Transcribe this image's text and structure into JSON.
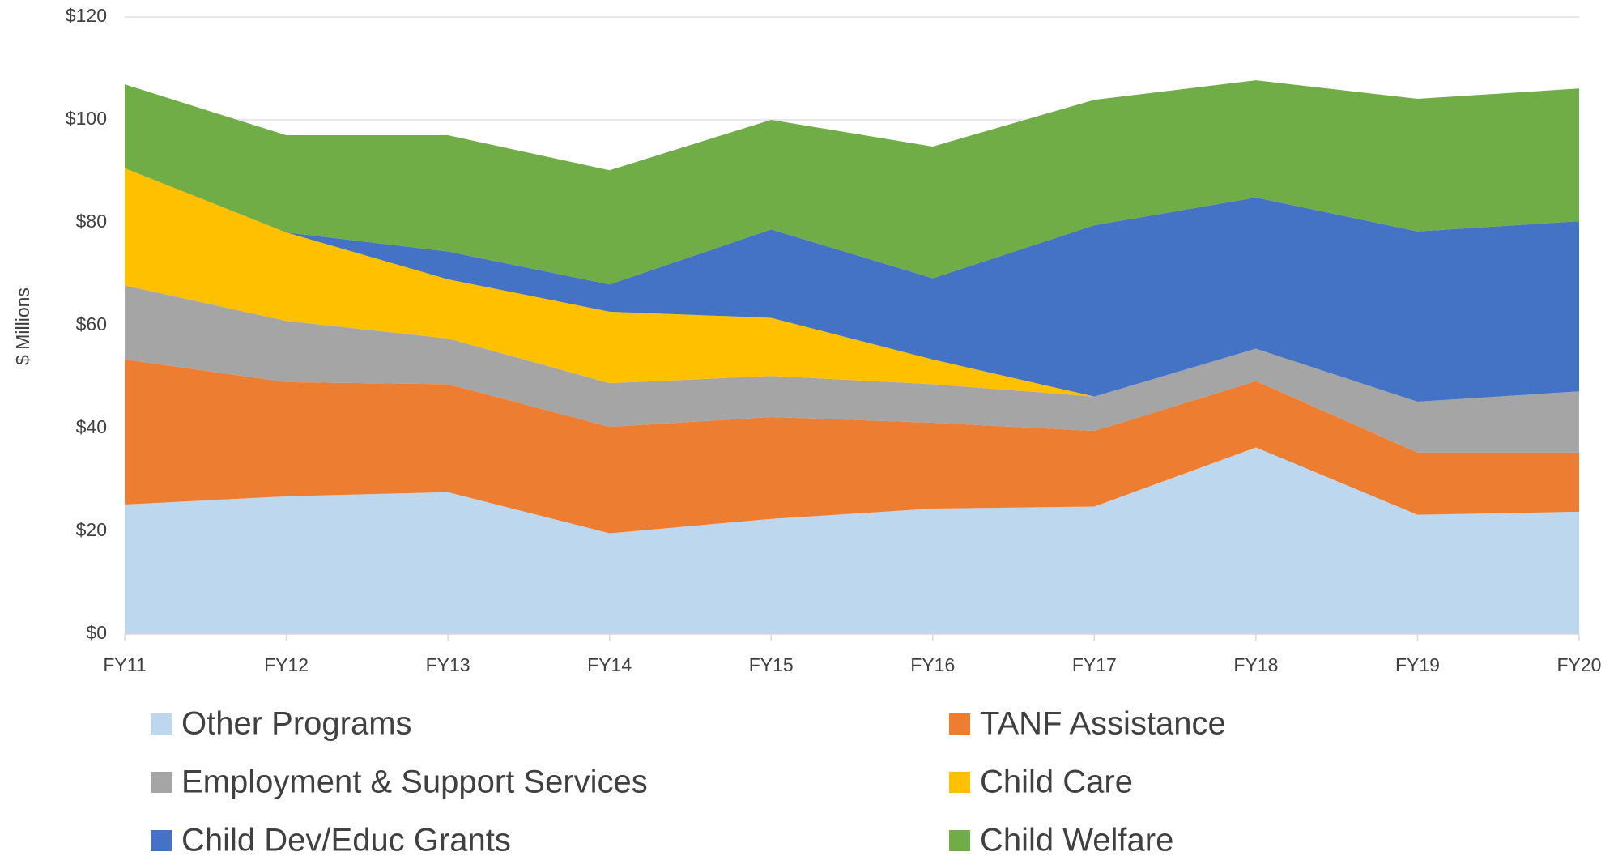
{
  "chart_data": {
    "type": "stacked_area",
    "y_label": "$ Millions",
    "categories": [
      "FY11",
      "FY12",
      "FY13",
      "FY14",
      "FY15",
      "FY16",
      "FY17",
      "FY18",
      "FY19",
      "FY20"
    ],
    "series": [
      {
        "name": "Other Programs",
        "color": "#bdd7ee",
        "values": [
          25.2,
          26.8,
          27.6,
          19.6,
          22.4,
          24.4,
          24.8,
          36.3,
          23.2,
          23.8
        ]
      },
      {
        "name": "TANF Assistance",
        "color": "#ed7d31",
        "values": [
          28.2,
          22.2,
          21.0,
          20.7,
          19.8,
          16.7,
          14.7,
          12.9,
          12.1,
          11.5
        ]
      },
      {
        "name": "Employment & Support Services",
        "color": "#a5a5a5",
        "values": [
          14.4,
          11.9,
          8.9,
          8.5,
          8.0,
          7.5,
          6.7,
          6.3,
          9.9,
          11.9
        ]
      },
      {
        "name": "Child Care",
        "color": "#ffc000",
        "values": [
          22.8,
          17.2,
          11.5,
          13.9,
          11.3,
          4.8,
          0,
          0,
          0,
          0
        ]
      },
      {
        "name": "Child Dev/Educ Grants",
        "color": "#4472c4",
        "values": [
          0,
          0,
          5.4,
          5.3,
          17.2,
          15.8,
          33.3,
          29.4,
          33.1,
          33.1
        ]
      },
      {
        "name": "Child Welfare",
        "color": "#70ad47",
        "values": [
          16.3,
          18.9,
          22.6,
          22.2,
          21.3,
          25.6,
          24.4,
          22.8,
          25.8,
          25.8
        ]
      }
    ],
    "ylim": [
      0,
      120
    ],
    "yticks": [
      {
        "value": 0,
        "label": "$0"
      },
      {
        "value": 20,
        "label": "$20"
      },
      {
        "value": 40,
        "label": "$40"
      },
      {
        "value": 60,
        "label": "$60"
      },
      {
        "value": 80,
        "label": "$80"
      },
      {
        "value": 100,
        "label": "$100"
      },
      {
        "value": 120,
        "label": "$120"
      }
    ],
    "grid": true
  }
}
